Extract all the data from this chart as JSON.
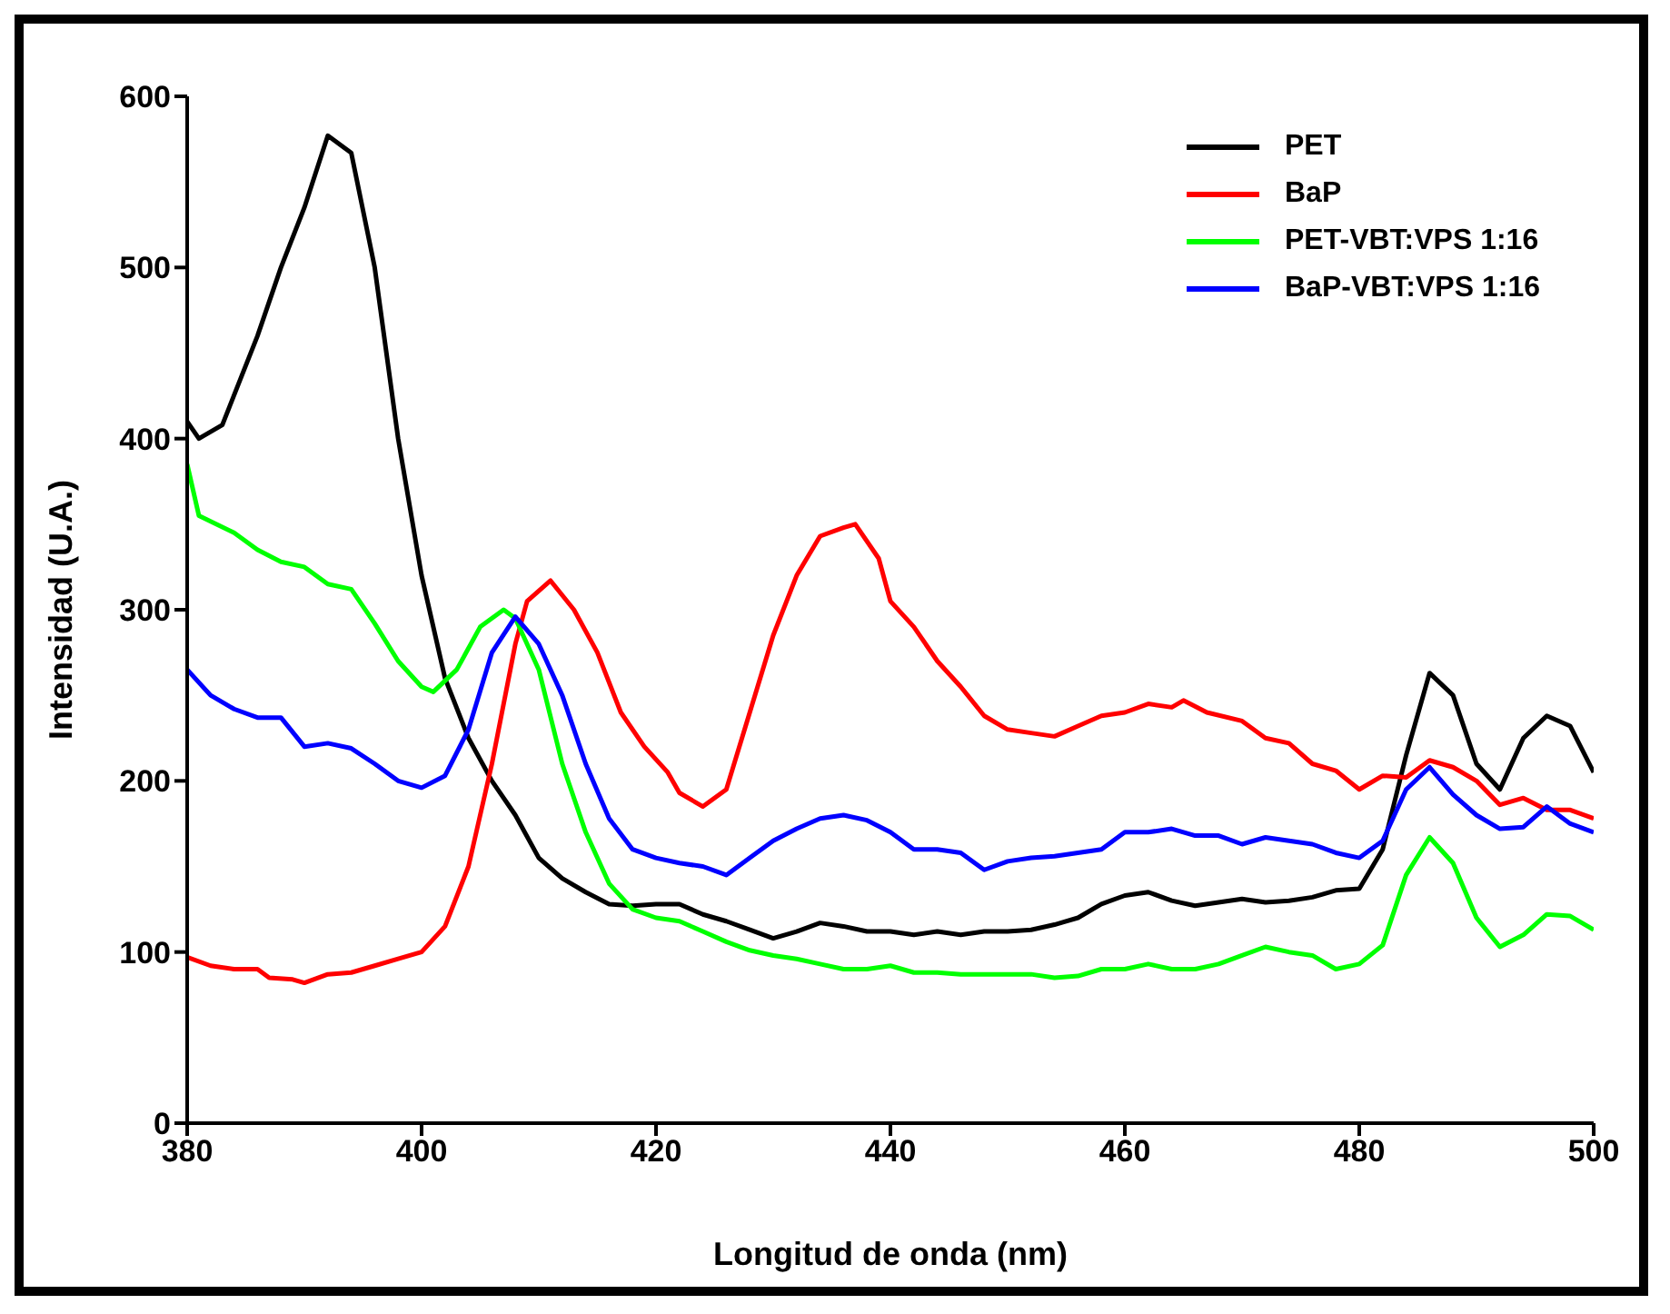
{
  "chart_data": {
    "type": "line",
    "xlabel": "Longitud de onda (nm)",
    "ylabel": "Intensidad (U.A.)",
    "xlim": [
      380,
      500
    ],
    "ylim": [
      0,
      600
    ],
    "xticks": [
      380,
      400,
      420,
      440,
      460,
      480,
      500
    ],
    "yticks": [
      0,
      100,
      200,
      300,
      400,
      500,
      600
    ],
    "grid": false,
    "legend": "top right",
    "marker": "none",
    "line_style": "solid",
    "series": [
      {
        "name": "PET",
        "color": "#000000",
        "x": [
          380,
          381,
          383,
          386,
          388,
          390,
          392,
          394,
          396,
          398,
          400,
          402,
          404,
          406,
          408,
          410,
          412,
          414,
          416,
          418,
          420,
          422,
          424,
          426,
          428,
          430,
          432,
          434,
          436,
          438,
          440,
          442,
          444,
          446,
          448,
          450,
          452,
          454,
          456,
          458,
          460,
          462,
          464,
          466,
          468,
          470,
          472,
          474,
          476,
          478,
          480,
          482,
          484,
          486,
          488,
          490,
          492,
          494,
          496,
          498,
          500
        ],
        "values": [
          410,
          400,
          408,
          460,
          500,
          535,
          577,
          567,
          500,
          400,
          320,
          260,
          225,
          200,
          180,
          155,
          143,
          135,
          128,
          127,
          128,
          128,
          122,
          118,
          113,
          108,
          112,
          117,
          115,
          112,
          112,
          110,
          112,
          110,
          112,
          112,
          113,
          116,
          120,
          128,
          133,
          135,
          130,
          127,
          129,
          131,
          129,
          130,
          132,
          136,
          137,
          160,
          215,
          263,
          250,
          210,
          195,
          225,
          238,
          232,
          205
        ]
      },
      {
        "name": "BaP",
        "color": "#ff0000",
        "x": [
          380,
          382,
          384,
          386,
          387,
          389,
          390,
          392,
          394,
          396,
          398,
          400,
          402,
          404,
          406,
          408,
          409,
          411,
          413,
          415,
          417,
          419,
          421,
          422,
          424,
          426,
          428,
          430,
          432,
          434,
          436,
          437,
          439,
          440,
          442,
          444,
          446,
          448,
          450,
          452,
          454,
          456,
          458,
          460,
          462,
          464,
          465,
          467,
          470,
          472,
          474,
          476,
          478,
          480,
          482,
          484,
          486,
          488,
          490,
          492,
          494,
          496,
          498,
          500
        ],
        "values": [
          97,
          92,
          90,
          90,
          85,
          84,
          82,
          87,
          88,
          92,
          96,
          100,
          115,
          150,
          210,
          280,
          305,
          317,
          300,
          275,
          240,
          220,
          205,
          193,
          185,
          195,
          240,
          285,
          320,
          343,
          348,
          350,
          330,
          305,
          290,
          270,
          255,
          238,
          230,
          228,
          226,
          232,
          238,
          240,
          245,
          243,
          247,
          240,
          235,
          225,
          222,
          210,
          206,
          195,
          203,
          202,
          212,
          208,
          200,
          186,
          190,
          183,
          183,
          178
        ]
      },
      {
        "name": "PET-VBT:VPS 1:16",
        "color": "#00ff00",
        "x": [
          380,
          381,
          384,
          386,
          388,
          390,
          392,
          394,
          396,
          398,
          400,
          401,
          403,
          405,
          407,
          408,
          410,
          412,
          414,
          416,
          418,
          420,
          422,
          424,
          426,
          428,
          430,
          432,
          434,
          436,
          438,
          440,
          442,
          444,
          446,
          448,
          450,
          452,
          454,
          456,
          458,
          460,
          462,
          464,
          466,
          468,
          470,
          472,
          474,
          476,
          478,
          480,
          482,
          484,
          486,
          488,
          490,
          492,
          494,
          496,
          498,
          500
        ],
        "values": [
          385,
          355,
          345,
          335,
          328,
          325,
          315,
          312,
          292,
          270,
          255,
          252,
          265,
          290,
          300,
          295,
          265,
          210,
          170,
          140,
          125,
          120,
          118,
          112,
          106,
          101,
          98,
          96,
          93,
          90,
          90,
          92,
          88,
          88,
          87,
          87,
          87,
          87,
          85,
          86,
          90,
          90,
          93,
          90,
          90,
          93,
          98,
          103,
          100,
          98,
          90,
          93,
          104,
          145,
          167,
          152,
          120,
          103,
          110,
          122,
          121,
          113
        ]
      },
      {
        "name": "BaP-VBT:VPS 1:16",
        "color": "#0000ff",
        "x": [
          380,
          382,
          384,
          386,
          388,
          390,
          392,
          394,
          396,
          398,
          400,
          402,
          404,
          406,
          408,
          410,
          412,
          414,
          416,
          418,
          420,
          422,
          424,
          426,
          428,
          430,
          432,
          434,
          436,
          438,
          440,
          442,
          444,
          446,
          448,
          450,
          452,
          454,
          456,
          458,
          460,
          462,
          464,
          466,
          468,
          470,
          472,
          474,
          476,
          478,
          480,
          482,
          484,
          486,
          488,
          490,
          492,
          494,
          496,
          498,
          500
        ],
        "values": [
          265,
          250,
          242,
          237,
          237,
          220,
          222,
          219,
          210,
          200,
          196,
          203,
          230,
          275,
          296,
          280,
          250,
          210,
          178,
          160,
          155,
          152,
          150,
          145,
          155,
          165,
          172,
          178,
          180,
          177,
          170,
          160,
          160,
          158,
          148,
          153,
          155,
          156,
          158,
          160,
          170,
          170,
          172,
          168,
          168,
          163,
          167,
          165,
          163,
          158,
          155,
          165,
          195,
          208,
          192,
          180,
          172,
          173,
          185,
          175,
          170
        ]
      }
    ]
  }
}
